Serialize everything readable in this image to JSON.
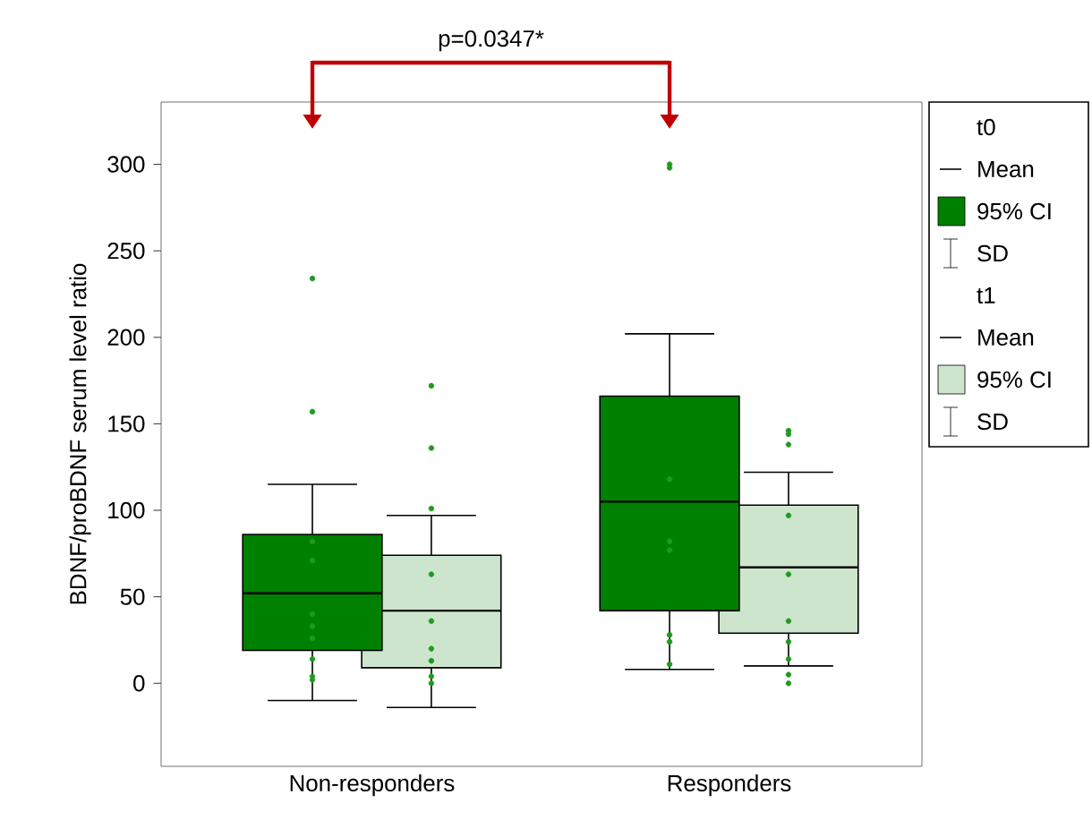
{
  "chart_data": {
    "type": "box",
    "ylabel": "BDNF/proBDNF serum level ratio",
    "categories": [
      "Non-responders",
      "Responders"
    ],
    "ylim": [
      -48,
      336
    ],
    "yticks": [
      0,
      50,
      100,
      150,
      200,
      250,
      300
    ],
    "legend": "right",
    "annotations": [
      "p=0.0347*",
      "Mean",
      "95% CI",
      "SD"
    ],
    "series": [
      {
        "name": "t0",
        "color": "#008000",
        "boxes": [
          {
            "low": -10,
            "q1": 19,
            "median": 52,
            "q3": 86,
            "high": 115
          },
          {
            "low": 8,
            "q1": 42,
            "median": 105,
            "q3": 166,
            "high": 202
          }
        ]
      },
      {
        "name": "t1",
        "color": "#cde5cd",
        "boxes": [
          {
            "low": -14,
            "q1": 9,
            "median": 42,
            "q3": 74,
            "high": 97
          },
          {
            "low": 10,
            "q1": 29,
            "median": 67,
            "q3": 103,
            "high": 122
          }
        ]
      },
      {
        "type": "scatter",
        "marker": "circle",
        "color": "#1f9a1f",
        "x": [
          "Non-responders",
          "Non-responders",
          "Non-responders",
          "Non-responders",
          "Non-responders",
          "Non-responders",
          "Non-responders",
          "Non-responders",
          "Non-responders",
          "Non-responders",
          "Responders",
          "Responders",
          "Responders",
          "Responders",
          "Responders",
          "Responders",
          "Responders",
          "Responders"
        ],
        "values": [
          234,
          157,
          82,
          71,
          40,
          33,
          26,
          14,
          4,
          2,
          300,
          298,
          118,
          82,
          77,
          28,
          24,
          11
        ]
      },
      {
        "type": "scatter",
        "marker": "circle",
        "color": "#1f9a1f",
        "x": [
          "Non-responders",
          "Non-responders",
          "Non-responders",
          "Non-responders",
          "Non-responders",
          "Non-responders",
          "Non-responders",
          "Non-responders",
          "Non-responders",
          "Responders",
          "Responders",
          "Responders",
          "Responders",
          "Responders",
          "Responders",
          "Responders",
          "Responders",
          "Responders",
          "Responders"
        ],
        "values": [
          172,
          136,
          101,
          63,
          36,
          20,
          13,
          4,
          0,
          146,
          144,
          138,
          97,
          63,
          36,
          24,
          14,
          5,
          0
        ]
      }
    ]
  }
}
